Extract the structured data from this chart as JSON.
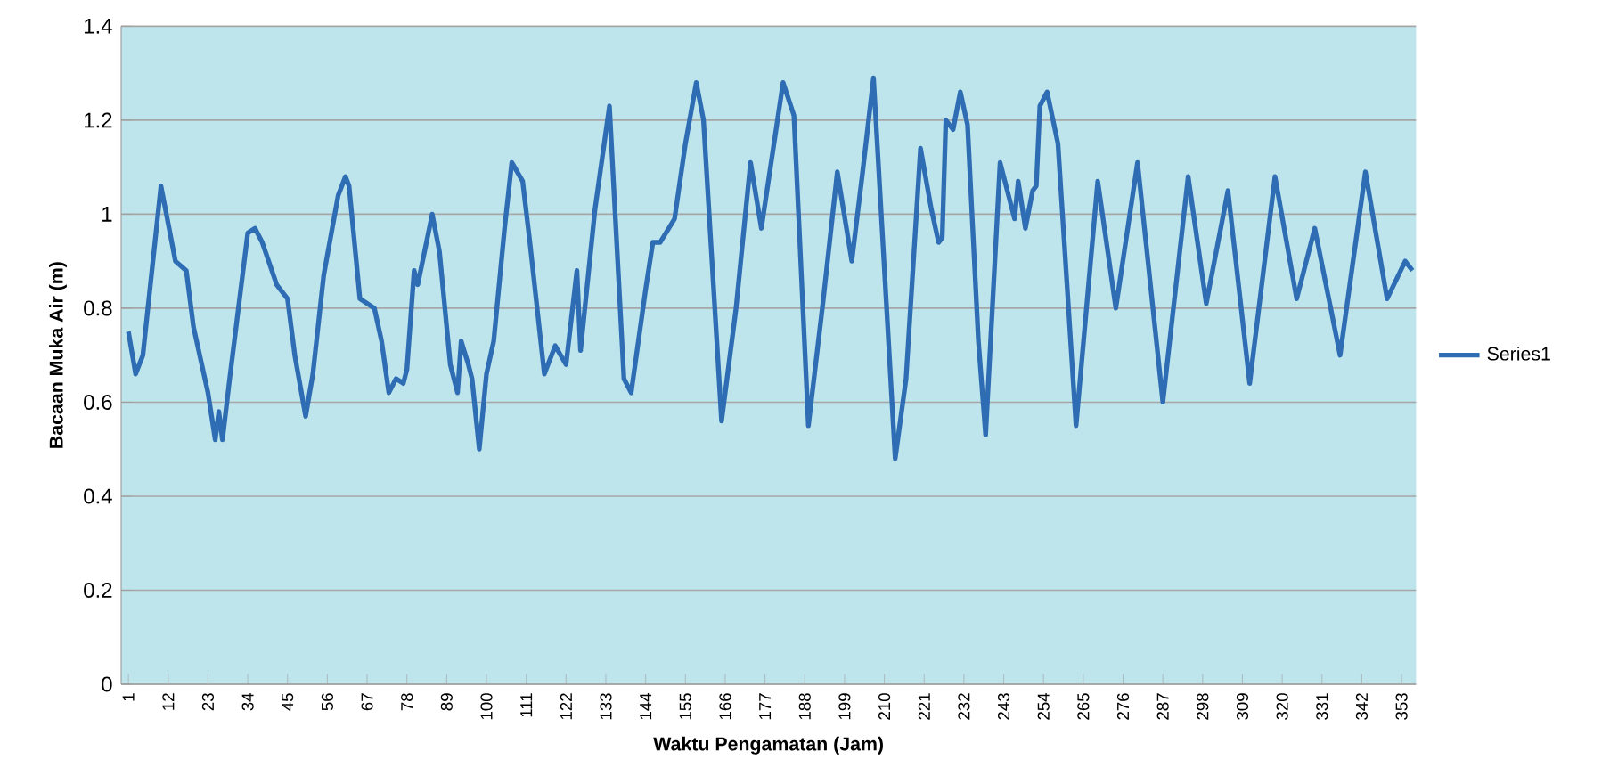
{
  "chart_data": {
    "type": "line",
    "xlabel": "Waktu Pengamatan (Jam)",
    "ylabel": "Bacaan Muka Air (m)",
    "x": [
      1,
      3,
      5,
      10,
      14,
      17,
      19,
      23,
      25,
      26,
      27,
      29,
      34,
      36,
      38,
      42,
      45,
      47,
      50,
      52,
      55,
      59,
      61,
      62,
      65,
      69,
      71,
      73,
      75,
      77,
      78,
      80,
      81,
      85,
      87,
      90,
      92,
      93,
      95,
      96,
      98,
      100,
      102,
      105,
      107,
      110,
      112,
      116,
      119,
      122,
      125,
      126,
      130,
      134,
      138,
      140,
      144,
      146,
      148,
      152,
      155,
      158,
      160,
      165,
      169,
      173,
      176,
      182,
      185,
      189,
      193,
      197,
      201,
      204,
      207,
      213,
      216,
      220,
      223,
      225,
      226,
      227,
      229,
      231,
      233,
      236,
      238,
      242,
      246,
      247,
      249,
      251,
      252,
      253,
      255,
      258,
      263,
      269,
      274,
      280,
      287,
      294,
      299,
      305,
      311,
      318,
      324,
      329,
      336,
      343,
      349,
      354,
      356
    ],
    "series": [
      {
        "name": "Series1",
        "color": "#2e6db4",
        "values": [
          0.75,
          0.66,
          0.7,
          1.06,
          0.9,
          0.88,
          0.76,
          0.62,
          0.52,
          0.58,
          0.52,
          0.65,
          0.96,
          0.97,
          0.94,
          0.85,
          0.82,
          0.7,
          0.57,
          0.66,
          0.87,
          1.04,
          1.08,
          1.06,
          0.82,
          0.8,
          0.73,
          0.62,
          0.65,
          0.64,
          0.67,
          0.88,
          0.85,
          1.0,
          0.92,
          0.68,
          0.62,
          0.73,
          0.68,
          0.65,
          0.5,
          0.66,
          0.73,
          0.97,
          1.11,
          1.07,
          0.94,
          0.66,
          0.72,
          0.68,
          0.88,
          0.71,
          1.01,
          1.23,
          0.65,
          0.62,
          0.84,
          0.94,
          0.94,
          0.99,
          1.15,
          1.28,
          1.2,
          0.56,
          0.8,
          1.11,
          0.97,
          1.28,
          1.21,
          0.55,
          0.81,
          1.09,
          0.9,
          1.09,
          1.29,
          0.48,
          0.65,
          1.14,
          1.01,
          0.94,
          0.95,
          1.2,
          1.18,
          1.26,
          1.19,
          0.73,
          0.53,
          1.11,
          0.99,
          1.07,
          0.97,
          1.05,
          1.06,
          1.23,
          1.26,
          1.15,
          0.55,
          1.07,
          0.8,
          1.11,
          0.6,
          1.08,
          0.81,
          1.05,
          0.64,
          1.08,
          0.82,
          0.97,
          0.7,
          1.09,
          0.82,
          0.9,
          0.88
        ]
      }
    ],
    "xlim": [
      -1,
      357
    ],
    "xticks": [
      1,
      12,
      23,
      34,
      45,
      56,
      67,
      78,
      89,
      100,
      111,
      122,
      133,
      144,
      155,
      166,
      177,
      188,
      199,
      210,
      221,
      232,
      243,
      254,
      265,
      276,
      287,
      298,
      309,
      320,
      331,
      342,
      353
    ],
    "ylim": [
      0,
      1.4
    ],
    "yticks": [
      0,
      0.2,
      0.4,
      0.6,
      0.8,
      1,
      1.2,
      1.4
    ],
    "grid": "y",
    "legend": "right",
    "marker": "none",
    "line_style": "solid"
  }
}
